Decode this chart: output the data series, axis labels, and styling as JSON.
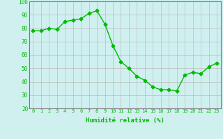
{
  "x": [
    0,
    1,
    2,
    3,
    4,
    5,
    6,
    7,
    8,
    9,
    10,
    11,
    12,
    13,
    14,
    15,
    16,
    17,
    18,
    19,
    20,
    21,
    22,
    23
  ],
  "y": [
    78,
    78,
    80,
    79,
    85,
    86,
    87,
    91,
    93,
    83,
    67,
    55,
    50,
    44,
    41,
    36,
    34,
    34,
    33,
    45,
    47,
    46,
    51,
    54
  ],
  "line_color": "#00bb00",
  "marker": "D",
  "marker_size": 2.5,
  "bg_color": "#d0f0f0",
  "grid_color": "#bbbbbb",
  "xlabel": "Humidité relative (%)",
  "xlabel_color": "#00bb00",
  "tick_color": "#00bb00",
  "ylim": [
    20,
    100
  ],
  "yticks": [
    20,
    30,
    40,
    50,
    60,
    70,
    80,
    90,
    100
  ],
  "xlim": [
    -0.5,
    23.5
  ],
  "title": ""
}
